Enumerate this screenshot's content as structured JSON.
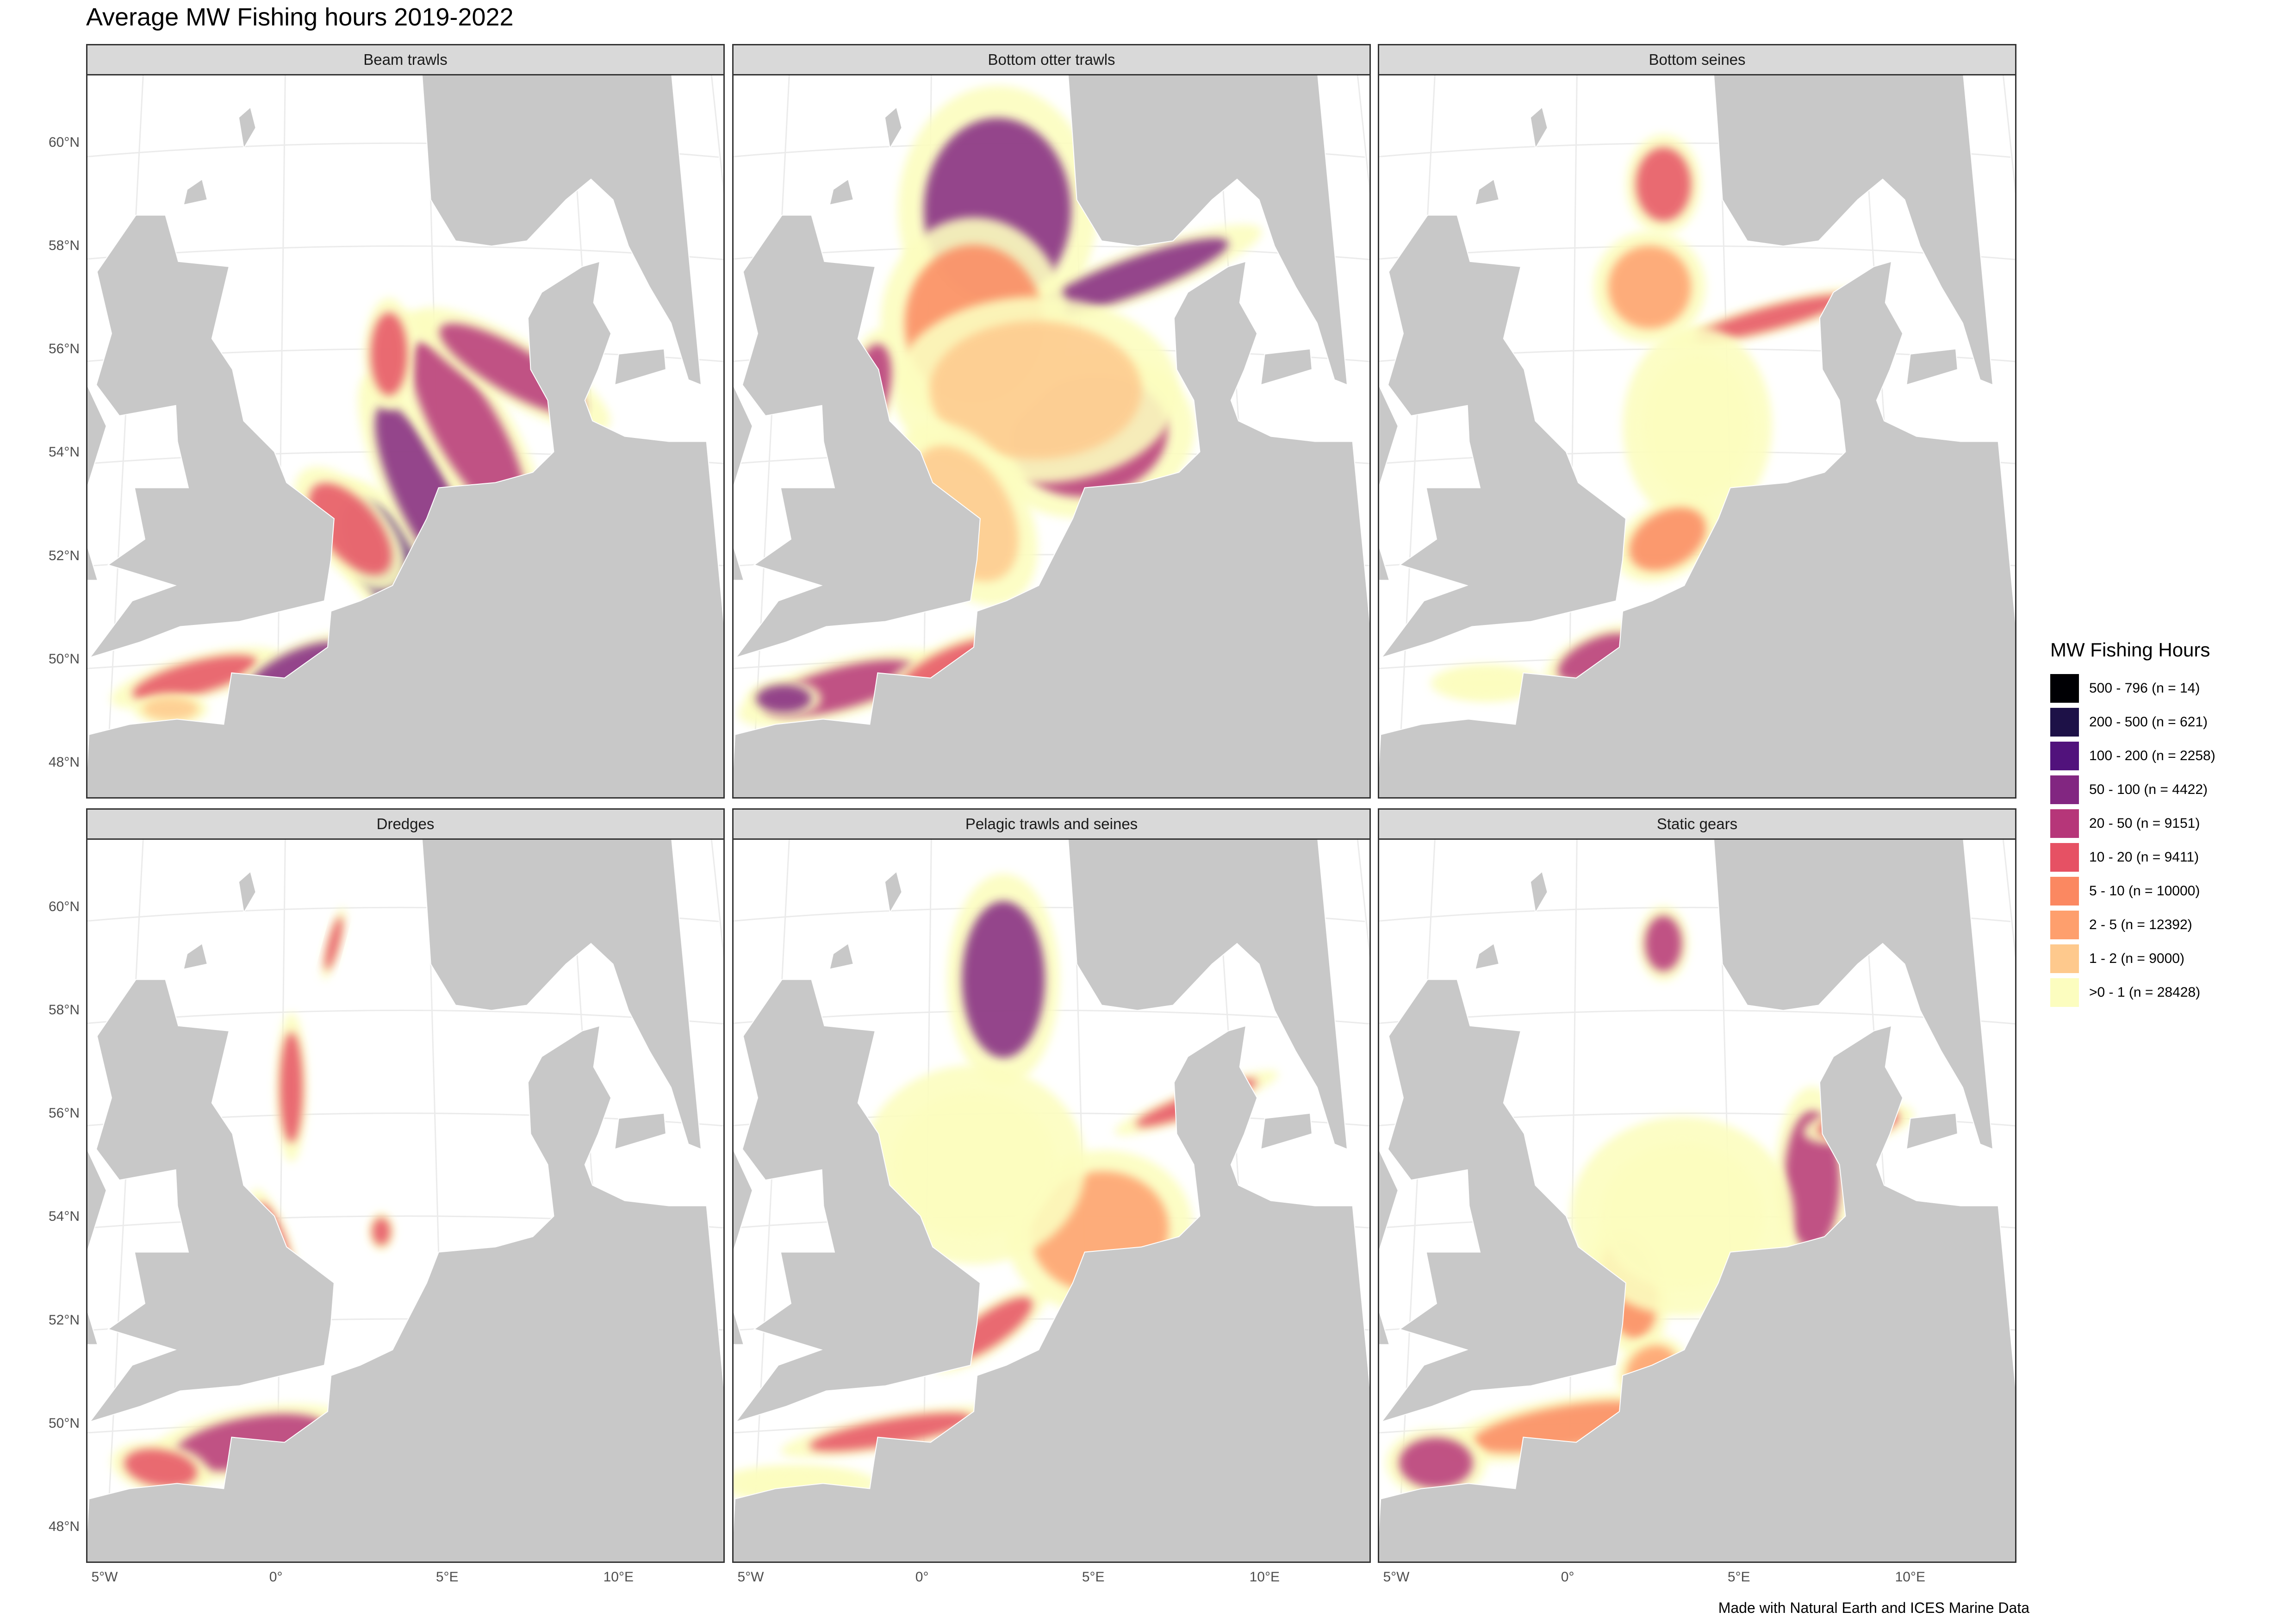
{
  "title": "Average MW Fishing hours 2019-2022",
  "caption": "Made with Natural Earth and ICES Marine Data",
  "colors": {
    "land": "#c8c8c8",
    "sea": "#ffffff",
    "graticule": "#ebebeb",
    "strip": "#d9d9d9"
  },
  "legend": {
    "title": "MW Fishing Hours",
    "items": [
      {
        "label": "500 - 796 (n = 14)",
        "color": "#000004"
      },
      {
        "label": "200 - 500 (n = 621)",
        "color": "#1d1147"
      },
      {
        "label": "100 - 200 (n = 2258)",
        "color": "#51127c"
      },
      {
        "label": "50 - 100 (n = 4422)",
        "color": "#822681"
      },
      {
        "label": "20 - 50 (n = 9151)",
        "color": "#b63679"
      },
      {
        "label": "10 - 20 (n = 9411)",
        "color": "#e65164"
      },
      {
        "label": "5 - 10 (n = 10000)",
        "color": "#fb8861"
      },
      {
        "label": "2 - 5 (n = 12392)",
        "color": "#fe9f6d"
      },
      {
        "label": "1 - 2 (n = 9000)",
        "color": "#fec98d"
      },
      {
        "label": ">0 - 1 (n = 28428)",
        "color": "#fcfdbf"
      }
    ]
  },
  "axes": {
    "y_ticks": [
      "60°N",
      "58°N",
      "56°N",
      "54°N",
      "52°N",
      "50°N",
      "48°N"
    ],
    "x_ticks": [
      "5°W",
      "0°",
      "5°E",
      "10°E"
    ]
  },
  "panels": [
    {
      "label": "Beam trawls",
      "icon": "beam-trawl-map",
      "blobs": [
        {
          "lon": 3.4,
          "lat": 51.9,
          "rx": 70,
          "ry": 150,
          "rot": -35,
          "level": 2
        },
        {
          "lon": 4.5,
          "lat": 53.2,
          "rx": 60,
          "ry": 210,
          "rot": -25,
          "level": 3
        },
        {
          "lon": 6.0,
          "lat": 54.4,
          "rx": 70,
          "ry": 220,
          "rot": -30,
          "level": 4
        },
        {
          "lon": 7.5,
          "lat": 55.6,
          "rx": 50,
          "ry": 180,
          "rot": -60,
          "level": 4
        },
        {
          "lon": 2.2,
          "lat": 52.5,
          "rx": 60,
          "ry": 120,
          "rot": -40,
          "level": 5
        },
        {
          "lon": 3.5,
          "lat": 55.9,
          "rx": 40,
          "ry": 90,
          "rot": 0,
          "level": 5
        },
        {
          "lon": -2.5,
          "lat": 49.6,
          "rx": 140,
          "ry": 35,
          "rot": -15,
          "level": 5
        },
        {
          "lon": 0.5,
          "lat": 49.8,
          "rx": 110,
          "ry": 35,
          "rot": -25,
          "level": 3
        },
        {
          "lon": -3.2,
          "lat": 49.0,
          "rx": 60,
          "ry": 25,
          "rot": 0,
          "level": 8
        }
      ]
    },
    {
      "label": "Bottom otter trawls",
      "icon": "otter-trawl-map",
      "blobs": [
        {
          "lon": 2.3,
          "lat": 58.7,
          "rx": 160,
          "ry": 200,
          "rot": 0,
          "level": 3
        },
        {
          "lon": 6.8,
          "lat": 57.4,
          "rx": 220,
          "ry": 40,
          "rot": -20,
          "level": 3
        },
        {
          "lon": 5.2,
          "lat": 54.3,
          "rx": 170,
          "ry": 130,
          "rot": -10,
          "level": 4
        },
        {
          "lon": 1.5,
          "lat": 56.5,
          "rx": 150,
          "ry": 170,
          "rot": 0,
          "level": 6
        },
        {
          "lon": 3.5,
          "lat": 55.2,
          "rx": 230,
          "ry": 150,
          "rot": 0,
          "level": 8
        },
        {
          "lon": 1.2,
          "lat": 52.8,
          "rx": 100,
          "ry": 160,
          "rot": -30,
          "level": 8
        },
        {
          "lon": -2.5,
          "lat": 49.4,
          "rx": 170,
          "ry": 45,
          "rot": -15,
          "level": 4
        },
        {
          "lon": 0.8,
          "lat": 49.8,
          "rx": 120,
          "ry": 40,
          "rot": -25,
          "level": 5
        },
        {
          "lon": -4.2,
          "lat": 49.2,
          "rx": 60,
          "ry": 30,
          "rot": 0,
          "level": 3
        },
        {
          "lon": -1.8,
          "lat": 55.3,
          "rx": 40,
          "ry": 90,
          "rot": 10,
          "level": 4
        }
      ]
    },
    {
      "label": "Bottom seines",
      "icon": "bottom-seine-map",
      "blobs": [
        {
          "lon": 3.0,
          "lat": 59.2,
          "rx": 60,
          "ry": 80,
          "rot": 0,
          "level": 5
        },
        {
          "lon": 6.5,
          "lat": 56.6,
          "rx": 170,
          "ry": 25,
          "rot": -15,
          "level": 5
        },
        {
          "lon": 2.5,
          "lat": 57.2,
          "rx": 90,
          "ry": 90,
          "rot": 0,
          "level": 7
        },
        {
          "lon": 4.0,
          "lat": 54.5,
          "rx": 120,
          "ry": 160,
          "rot": 0,
          "level": 9
        },
        {
          "lon": 3.0,
          "lat": 52.3,
          "rx": 90,
          "ry": 60,
          "rot": -30,
          "level": 6
        },
        {
          "lon": 0.8,
          "lat": 50.0,
          "rx": 90,
          "ry": 40,
          "rot": -25,
          "level": 4
        },
        {
          "lon": -2.5,
          "lat": 49.5,
          "rx": 90,
          "ry": 30,
          "rot": 0,
          "level": 9
        }
      ]
    },
    {
      "label": "Dredges",
      "icon": "dredge-map",
      "blobs": [
        {
          "lon": -0.8,
          "lat": 49.6,
          "rx": 170,
          "ry": 55,
          "rot": -10,
          "level": 4
        },
        {
          "lon": -3.5,
          "lat": 49.1,
          "rx": 80,
          "ry": 40,
          "rot": 10,
          "level": 5
        },
        {
          "lon": -0.2,
          "lat": 53.5,
          "rx": 25,
          "ry": 90,
          "rot": -20,
          "level": 5
        },
        {
          "lon": 0.3,
          "lat": 56.5,
          "rx": 25,
          "ry": 120,
          "rot": 0,
          "level": 5
        },
        {
          "lon": 1.7,
          "lat": 59.3,
          "rx": 12,
          "ry": 60,
          "rot": 15,
          "level": 5
        },
        {
          "lon": 3.2,
          "lat": 53.7,
          "rx": 20,
          "ry": 30,
          "rot": 0,
          "level": 5
        },
        {
          "lon": 9.2,
          "lat": 55.3,
          "rx": 12,
          "ry": 25,
          "rot": 0,
          "level": 6
        }
      ]
    },
    {
      "label": "Pelagic trawls and seines",
      "icon": "pelagic-trawl-map",
      "blobs": [
        {
          "lon": 2.5,
          "lat": 58.6,
          "rx": 90,
          "ry": 170,
          "rot": 0,
          "level": 3
        },
        {
          "lon": 5.5,
          "lat": 53.7,
          "rx": 150,
          "ry": 130,
          "rot": -10,
          "level": 7
        },
        {
          "lon": 8.8,
          "lat": 56.2,
          "rx": 140,
          "ry": 22,
          "rot": -20,
          "level": 5
        },
        {
          "lon": 2.0,
          "lat": 51.8,
          "rx": 110,
          "ry": 35,
          "rot": -35,
          "level": 5
        },
        {
          "lon": -1.0,
          "lat": 49.8,
          "rx": 180,
          "ry": 28,
          "rot": -10,
          "level": 5
        },
        {
          "lon": -3.8,
          "lat": 48.8,
          "rx": 130,
          "ry": 30,
          "rot": 0,
          "level": 9
        },
        {
          "lon": 1.5,
          "lat": 55.0,
          "rx": 180,
          "ry": 160,
          "rot": 0,
          "level": 9
        }
      ]
    },
    {
      "label": "Static gears",
      "icon": "static-gear-map",
      "blobs": [
        {
          "lon": 3.0,
          "lat": 59.3,
          "rx": 40,
          "ry": 60,
          "rot": 0,
          "level": 4
        },
        {
          "lon": 7.7,
          "lat": 54.7,
          "rx": 60,
          "ry": 150,
          "rot": 0,
          "level": 4
        },
        {
          "lon": 9.3,
          "lat": 55.8,
          "rx": 90,
          "ry": 30,
          "rot": -10,
          "level": 5
        },
        {
          "lon": 1.8,
          "lat": 52.6,
          "rx": 60,
          "ry": 110,
          "rot": -10,
          "level": 6
        },
        {
          "lon": -0.2,
          "lat": 49.9,
          "rx": 200,
          "ry": 45,
          "rot": -10,
          "level": 6
        },
        {
          "lon": -4.0,
          "lat": 49.2,
          "rx": 80,
          "ry": 55,
          "rot": 0,
          "level": 4
        },
        {
          "lon": 2.5,
          "lat": 51.0,
          "rx": 60,
          "ry": 50,
          "rot": -40,
          "level": 7
        },
        {
          "lon": 3.5,
          "lat": 54.0,
          "rx": 180,
          "ry": 160,
          "rot": 0,
          "level": 9
        }
      ]
    }
  ]
}
